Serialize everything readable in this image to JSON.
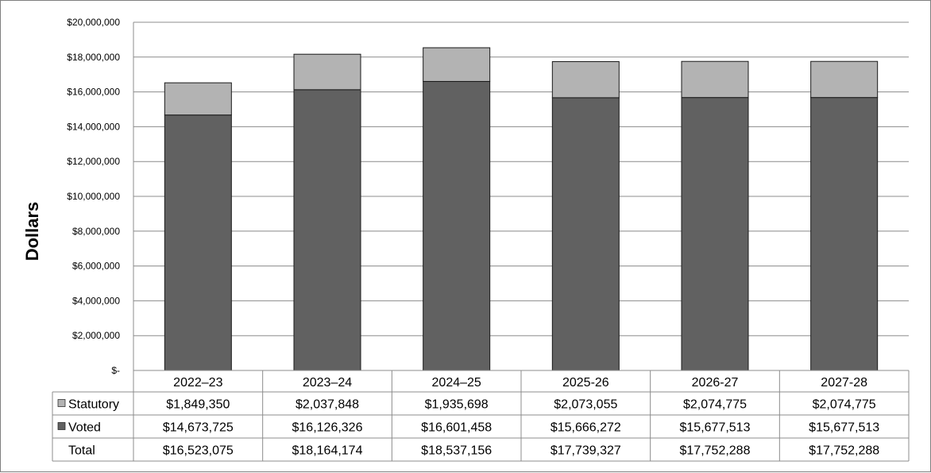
{
  "chart_data": {
    "type": "bar",
    "stacked": true,
    "ylabel": "Dollars",
    "ylim": [
      0,
      20000000
    ],
    "ytick_values": [
      0,
      2000000,
      4000000,
      6000000,
      8000000,
      10000000,
      12000000,
      14000000,
      16000000,
      18000000,
      20000000
    ],
    "ytick_labels": [
      "$-",
      "$2,000,000",
      "$4,000,000",
      "$6,000,000",
      "$8,000,000",
      "$10,000,000",
      "$12,000,000",
      "$14,000,000",
      "$16,000,000",
      "$18,000,000",
      "$20,000,000"
    ],
    "grid": true,
    "legend": "data-table",
    "categories": [
      "2022–23",
      "2023–24",
      "2024–25",
      "2025-26",
      "2026-27",
      "2027-28"
    ],
    "series": [
      {
        "name": "Statutory",
        "color": "#b3b3b3",
        "values": [
          1849350,
          2037848,
          1935698,
          2073055,
          2074775,
          2074775
        ],
        "labels": [
          "$1,849,350",
          "$2,037,848",
          "$1,935,698",
          "$2,073,055",
          "$2,074,775",
          "$2,074,775"
        ]
      },
      {
        "name": "Voted",
        "color": "#616161",
        "values": [
          14673725,
          16126326,
          16601458,
          15666272,
          15677513,
          15677513
        ],
        "labels": [
          "$14,673,725",
          "$16,126,326",
          "$16,601,458",
          "$15,666,272",
          "$15,677,513",
          "$15,677,513"
        ]
      }
    ],
    "total": {
      "name": "Total",
      "values": [
        16523075,
        18164174,
        18537156,
        17739327,
        17752288,
        17752288
      ],
      "labels": [
        "$16,523,075",
        "$18,164,174",
        "$18,537,156",
        "$17,739,327",
        "$17,752,288",
        "$17,752,288"
      ]
    }
  }
}
